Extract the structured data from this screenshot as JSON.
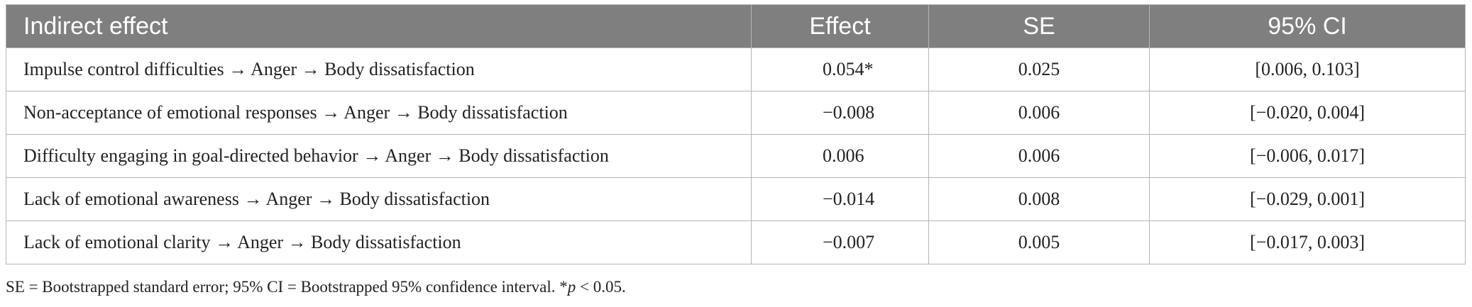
{
  "table": {
    "headers": [
      "Indirect effect",
      "Effect",
      "SE",
      "95% CI"
    ],
    "rows": [
      {
        "label": "Impulse control difficulties → Anger → Body dissatisfaction",
        "effect": "0.054*",
        "se": "0.025",
        "ci": "[0.006, 0.103]"
      },
      {
        "label": "Non-acceptance of emotional responses → Anger → Body dissatisfaction",
        "effect": "−0.008",
        "se": "0.006",
        "ci": "[−0.020, 0.004]"
      },
      {
        "label": "Difficulty engaging in goal-directed behavior → Anger → Body dissatisfaction",
        "effect": "0.006",
        "se": "0.006",
        "ci": "[−0.006, 0.017]"
      },
      {
        "label": "Lack of emotional awareness → Anger → Body dissatisfaction",
        "effect": "−0.014",
        "se": "0.008",
        "ci": "[−0.029, 0.001]"
      },
      {
        "label": "Lack of emotional clarity → Anger → Body dissatisfaction",
        "effect": "−0.007",
        "se": "0.005",
        "ci": "[−0.017, 0.003]"
      }
    ]
  },
  "footnote": {
    "main": "SE = Bootstrapped standard error; 95% CI = Bootstrapped 95% confidence interval. *",
    "p_symbol": "p",
    "threshold": " < 0.05."
  }
}
